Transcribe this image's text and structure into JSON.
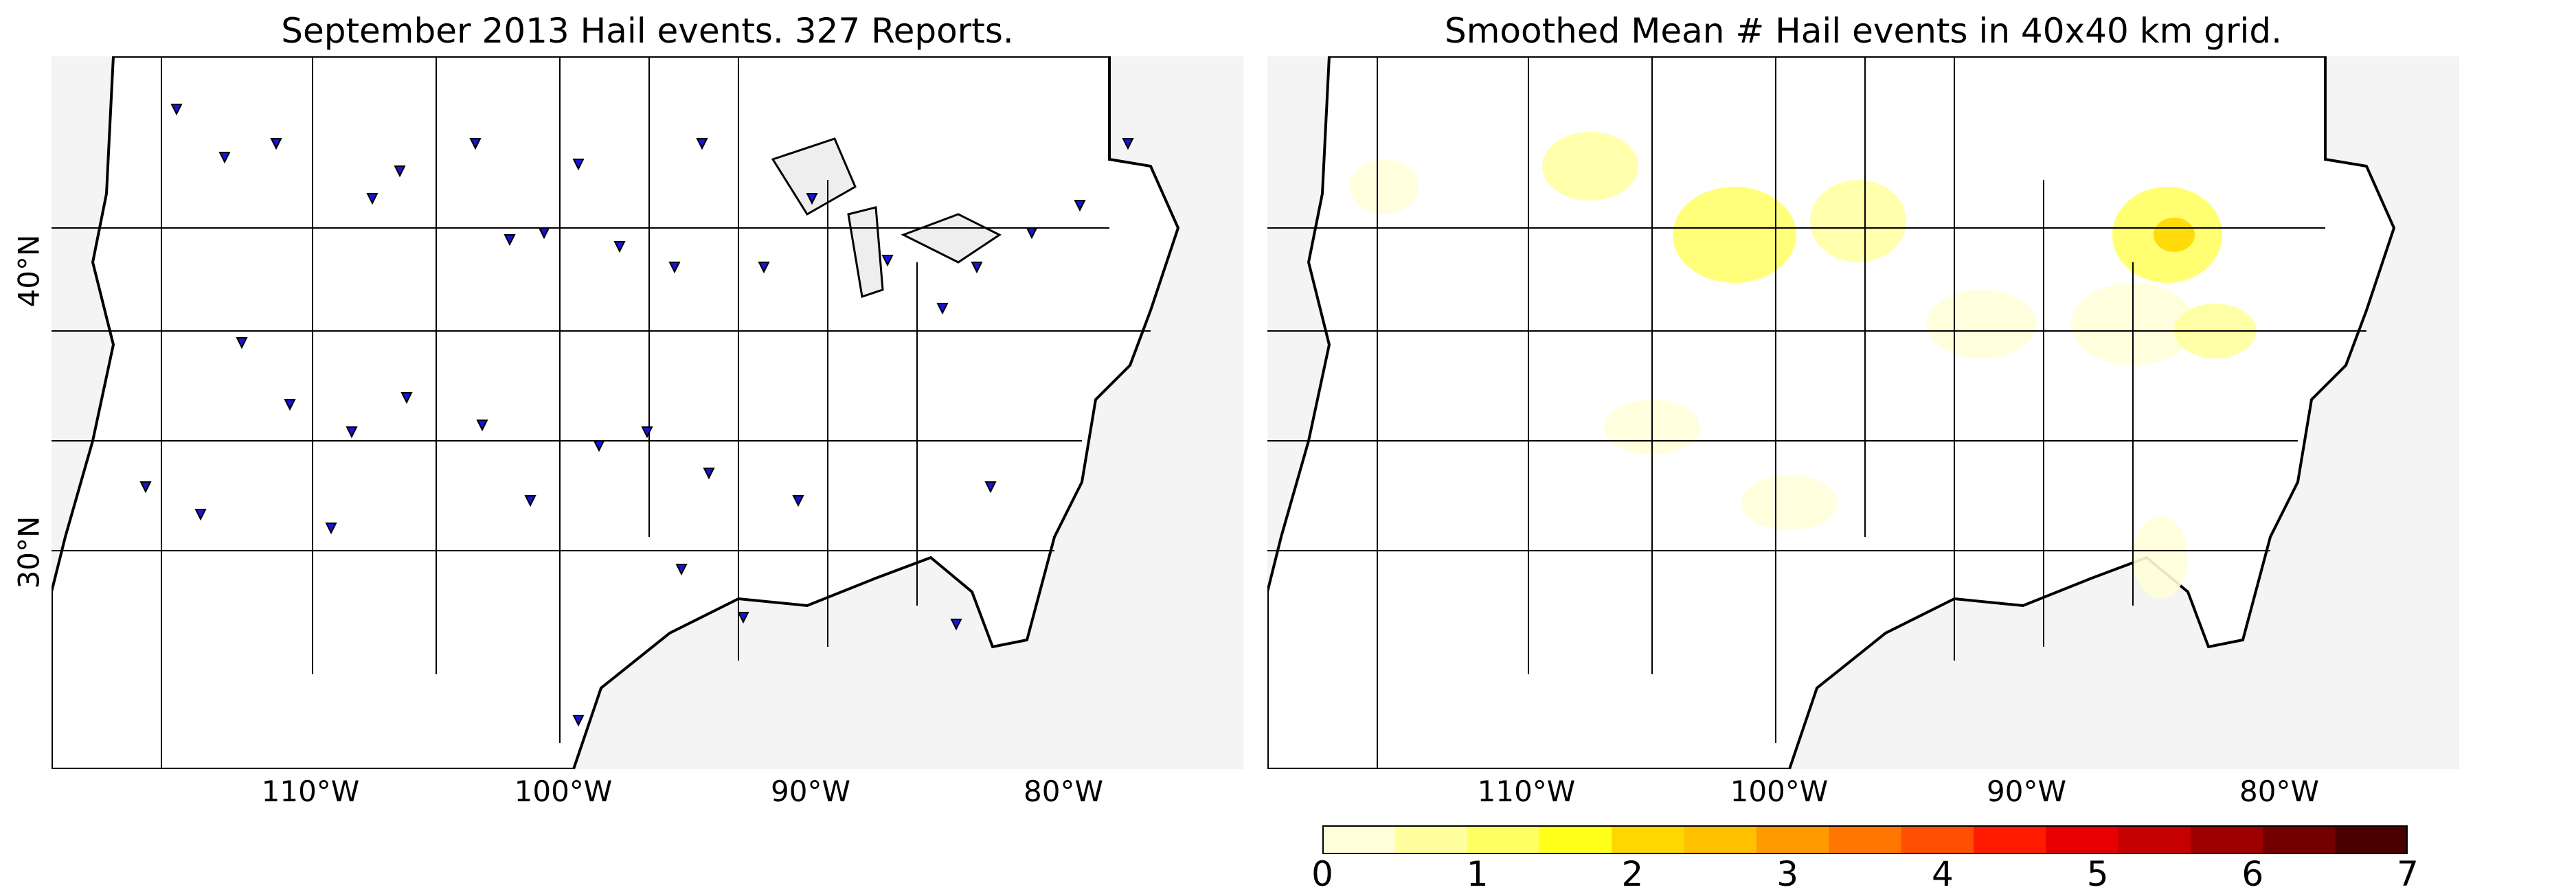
{
  "left_panel": {
    "title": "September 2013 Hail events. 327 Reports.",
    "lat_labels": [
      "40°N",
      "30°N"
    ],
    "lon_labels": [
      "110°W",
      "100°W",
      "90°W",
      "80°W"
    ],
    "marker_symbol": "blue-downward-triangle",
    "marker_color": "#1a12d6",
    "land_color": "#ffffff",
    "ocean_color": "#f4f4f4"
  },
  "right_panel": {
    "title": "Smoothed Mean # Hail events in 40x40 km grid.",
    "lon_labels": [
      "110°W",
      "100°W",
      "90°W",
      "80°W"
    ],
    "land_color": "#ffffff",
    "ocean_color": "#f4f4f4"
  },
  "colorbar": {
    "ticks": [
      "0",
      "1",
      "2",
      "3",
      "4",
      "5",
      "6",
      "7"
    ],
    "min": 0,
    "max": 7,
    "colors": [
      "#ffffd9",
      "#ffff9e",
      "#ffff62",
      "#ffff1a",
      "#ffd700",
      "#ffc000",
      "#ff9a00",
      "#ff7600",
      "#ff4f00",
      "#ff1b00",
      "#e60000",
      "#c40000",
      "#9c0000",
      "#720000",
      "#4a0000"
    ]
  }
}
